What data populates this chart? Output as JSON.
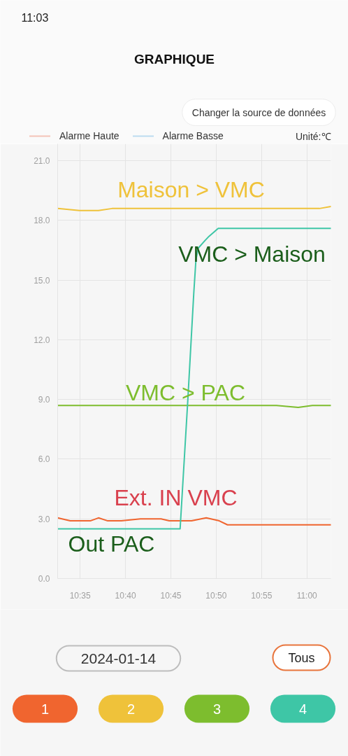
{
  "chart_data": {
    "type": "line",
    "title": "GRAPHIQUE",
    "ylabel": "Unité:℃",
    "xlim": [
      10.542,
      11.044
    ],
    "xticks": [
      {
        "value": 10.5833,
        "label": "10:35"
      },
      {
        "value": 10.6667,
        "label": "10:40"
      },
      {
        "value": 10.75,
        "label": "10:45"
      },
      {
        "value": 10.8333,
        "label": "10:50"
      },
      {
        "value": 10.9167,
        "label": "10:55"
      },
      {
        "value": 11.0,
        "label": "11:00"
      }
    ],
    "ylim": [
      0,
      21.85
    ],
    "yticks": [
      {
        "value": 0,
        "label": "0.0"
      },
      {
        "value": 3,
        "label": "3.0"
      },
      {
        "value": 6,
        "label": "6.0"
      },
      {
        "value": 9,
        "label": "9.0"
      },
      {
        "value": 12,
        "label": "12.0"
      },
      {
        "value": 15,
        "label": "15.0"
      },
      {
        "value": 18,
        "label": "18.0"
      },
      {
        "value": 21,
        "label": "21.0"
      }
    ],
    "grid": true,
    "legend": "top left",
    "series": [
      {
        "color": "#f0652f",
        "x": [
          10.542,
          10.55,
          10.565,
          10.602,
          10.617,
          10.634,
          10.659,
          10.694,
          10.732,
          10.747,
          10.788,
          10.815,
          10.839,
          10.854,
          11.044
        ],
        "values": [
          3.05,
          3.0,
          2.9,
          2.9,
          3.05,
          2.9,
          2.9,
          3.0,
          3.0,
          2.9,
          2.9,
          3.05,
          2.9,
          2.7,
          2.7
        ]
      },
      {
        "color": "#efc23a",
        "x": [
          10.542,
          10.582,
          10.617,
          10.642,
          11.023,
          11.044
        ],
        "values": [
          18.6,
          18.5,
          18.5,
          18.6,
          18.6,
          18.7
        ]
      },
      {
        "color": "#7dbd2e",
        "x": [
          10.542,
          10.944,
          10.984,
          11.01,
          11.044
        ],
        "values": [
          8.7,
          8.7,
          8.6,
          8.7,
          8.7
        ]
      },
      {
        "color": "#3ec6a6",
        "x": [
          10.542,
          10.767,
          10.781,
          10.792,
          10.796,
          10.8,
          10.813,
          10.82,
          10.837,
          11.044
        ],
        "values": [
          2.5,
          2.5,
          8.9,
          14.3,
          16.0,
          16.6,
          17.0,
          17.2,
          17.6,
          17.6
        ]
      },
      {
        "name": "Alarme Haute",
        "color": "#f4c4b8"
      },
      {
        "name": "Alarme Basse",
        "color": "#bcdcf0"
      }
    ],
    "annotations": [
      "11:03",
      "Changer la source de données",
      "Maison > VMC",
      "VMC > Maison",
      "VMC > PAC",
      "Ext. IN VMC",
      "Out PAC",
      "2024-01-14",
      "Tous",
      "1",
      "2",
      "3",
      "4"
    ]
  }
}
